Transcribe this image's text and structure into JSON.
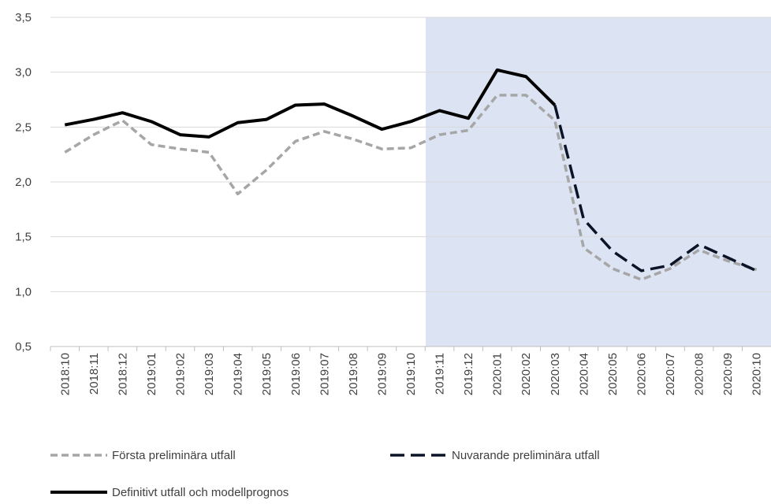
{
  "chart_data": {
    "type": "line",
    "categories": [
      "2018:10",
      "2018:11",
      "2018:12",
      "2019:01",
      "2019:02",
      "2019:03",
      "2019:04",
      "2019:05",
      "2019:06",
      "2019:07",
      "2019:08",
      "2019:09",
      "2019:10",
      "2019:11",
      "2019:12",
      "2020:01",
      "2020:02",
      "2020:03",
      "2020:04",
      "2020:05",
      "2020:06",
      "2020:07",
      "2020:08",
      "2020:09",
      "2020:10"
    ],
    "series": [
      {
        "name": "Första preliminära utfall",
        "color": "#a6a6a6",
        "dash": "dashed",
        "values": [
          2.27,
          2.43,
          2.56,
          2.34,
          2.3,
          2.27,
          1.89,
          2.11,
          2.37,
          2.46,
          2.39,
          2.3,
          2.31,
          2.43,
          2.47,
          2.79,
          2.79,
          2.56,
          1.4,
          1.21,
          1.11,
          1.21,
          1.38,
          1.28,
          1.2
        ]
      },
      {
        "name": "Nuvarande preliminära utfall",
        "color": "#0b1326",
        "dash": "dashed",
        "values": [
          null,
          null,
          null,
          null,
          null,
          null,
          null,
          null,
          null,
          null,
          null,
          null,
          null,
          null,
          null,
          null,
          null,
          2.7,
          1.66,
          1.37,
          1.19,
          1.24,
          1.43,
          1.31,
          1.19
        ]
      },
      {
        "name": "Definitivt utfall och modellprognos",
        "color": "#000000",
        "dash": "solid",
        "values": [
          2.52,
          2.57,
          2.63,
          2.55,
          2.43,
          2.41,
          2.54,
          2.57,
          2.7,
          2.71,
          2.6,
          2.48,
          2.55,
          2.65,
          2.58,
          3.02,
          2.96,
          2.7,
          null,
          null,
          null,
          null,
          null,
          null,
          null
        ]
      }
    ],
    "ylim": [
      0.5,
      3.5
    ],
    "yticks": [
      {
        "value": 0.5,
        "label": "0,5"
      },
      {
        "value": 1.0,
        "label": "1,0"
      },
      {
        "value": 1.5,
        "label": "1,5"
      },
      {
        "value": 2.0,
        "label": "2,0"
      },
      {
        "value": 2.5,
        "label": "2,5"
      },
      {
        "value": 3.0,
        "label": "3,0"
      },
      {
        "value": 3.5,
        "label": "3,5"
      }
    ],
    "grid": true,
    "legend": "bottom"
  }
}
